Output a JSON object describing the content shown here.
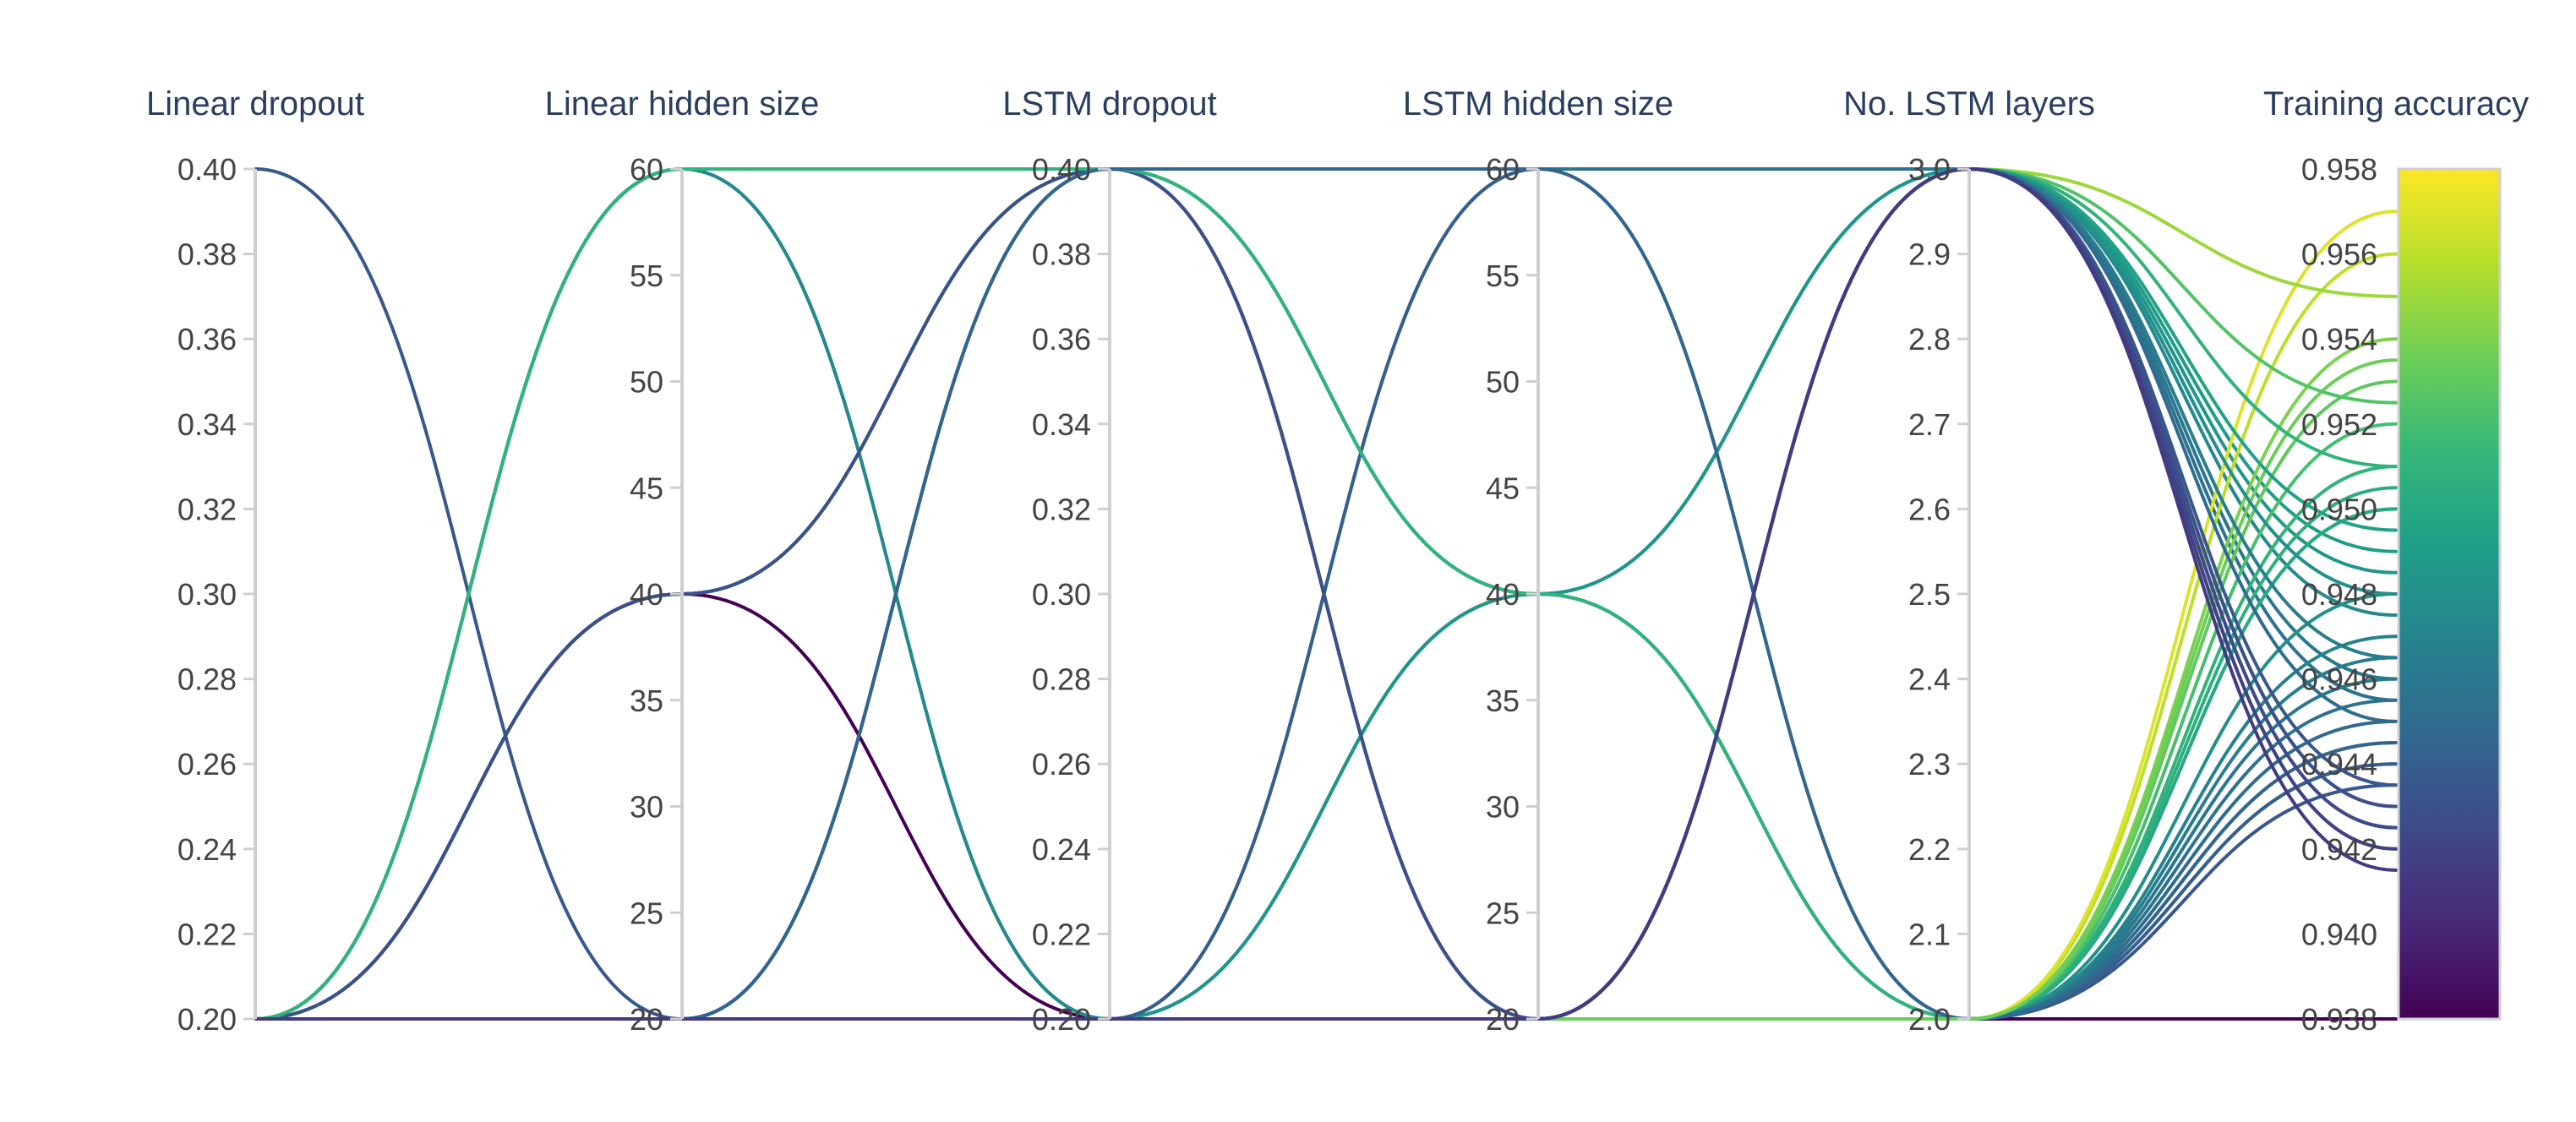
{
  "chart_data": {
    "type": "parallel-coordinates",
    "title": "",
    "colorscale": "viridis",
    "colorscale_stops": [
      "#440154",
      "#482878",
      "#3e4989",
      "#31688e",
      "#26828e",
      "#1f9e89",
      "#35b779",
      "#6ece58",
      "#b5de2b",
      "#fde725"
    ],
    "axes": [
      {
        "key": "linear_dropout",
        "label": "Linear dropout",
        "range": [
          0.2,
          0.4
        ],
        "ticks": [
          "0.20",
          "0.22",
          "0.24",
          "0.26",
          "0.28",
          "0.30",
          "0.32",
          "0.34",
          "0.36",
          "0.38",
          "0.40"
        ]
      },
      {
        "key": "linear_hidden",
        "label": "Linear hidden size",
        "range": [
          20,
          60
        ],
        "ticks": [
          "20",
          "25",
          "30",
          "35",
          "40",
          "45",
          "50",
          "55",
          "60"
        ]
      },
      {
        "key": "lstm_dropout",
        "label": "LSTM dropout",
        "range": [
          0.2,
          0.4
        ],
        "ticks": [
          "0.20",
          "0.22",
          "0.24",
          "0.26",
          "0.28",
          "0.30",
          "0.32",
          "0.34",
          "0.36",
          "0.38",
          "0.40"
        ]
      },
      {
        "key": "lstm_hidden",
        "label": "LSTM hidden size",
        "range": [
          20,
          60
        ],
        "ticks": [
          "20",
          "25",
          "30",
          "35",
          "40",
          "45",
          "50",
          "55",
          "60"
        ]
      },
      {
        "key": "lstm_layers",
        "label": "No. LSTM layers",
        "range": [
          2,
          3
        ],
        "ticks": [
          "2.0",
          "2.1",
          "2.2",
          "2.3",
          "2.4",
          "2.5",
          "2.6",
          "2.7",
          "2.8",
          "2.9",
          "3.0"
        ]
      },
      {
        "key": "training_accuracy",
        "label": "Training accuracy",
        "range": [
          0.938,
          0.958
        ],
        "ticks": [
          "0.938",
          "0.940",
          "0.942",
          "0.944",
          "0.946",
          "0.948",
          "0.950",
          "0.952",
          "0.954",
          "0.956",
          "0.958"
        ]
      }
    ],
    "runs": [
      [
        0.4,
        20,
        0.2,
        20,
        2,
        0.9435
      ],
      [
        0.2,
        60,
        0.2,
        20,
        2,
        0.9445
      ],
      [
        0.2,
        60,
        0.4,
        60,
        3,
        0.946
      ],
      [
        0.2,
        40,
        0.4,
        40,
        3,
        0.949
      ],
      [
        0.2,
        40,
        0.2,
        20,
        2,
        0.938
      ],
      [
        0.2,
        20,
        0.4,
        20,
        3,
        0.942
      ],
      [
        0.2,
        20,
        0.2,
        60,
        3,
        0.9455
      ],
      [
        0.2,
        40,
        0.4,
        40,
        2,
        0.9465
      ],
      [
        0.2,
        60,
        0.4,
        40,
        2,
        0.95
      ],
      [
        0.2,
        20,
        0.4,
        20,
        3,
        0.9425
      ],
      [
        0.2,
        60,
        0.2,
        40,
        3,
        0.9475
      ],
      [
        0.2,
        20,
        0.2,
        40,
        2,
        0.9455
      ],
      [
        0.2,
        20,
        0.2,
        40,
        3,
        0.9485
      ],
      [
        0.2,
        20,
        0.2,
        60,
        2,
        0.944
      ],
      [
        0.2,
        40,
        0.4,
        20,
        3,
        0.943
      ],
      [
        0.2,
        60,
        0.4,
        40,
        2,
        0.951
      ],
      [
        0.2,
        20,
        0.4,
        60,
        2,
        0.9445
      ],
      [
        0.2,
        20,
        0.2,
        20,
        2,
        0.944
      ],
      [
        0.2,
        20,
        0.2,
        20,
        2,
        0.947
      ],
      [
        0.2,
        20,
        0.2,
        20,
        2,
        0.95
      ],
      [
        0.2,
        20,
        0.2,
        20,
        2,
        0.952
      ],
      [
        0.2,
        20,
        0.2,
        20,
        2,
        0.954
      ],
      [
        0.2,
        20,
        0.2,
        20,
        2,
        0.956
      ],
      [
        0.2,
        20,
        0.2,
        20,
        2,
        0.957
      ],
      [
        0.2,
        20,
        0.2,
        20,
        2,
        0.953
      ],
      [
        0.2,
        20,
        0.2,
        20,
        2,
        0.9505
      ],
      [
        0.2,
        20,
        0.2,
        20,
        2,
        0.948
      ],
      [
        0.2,
        20,
        0.2,
        20,
        2,
        0.946
      ],
      [
        0.2,
        20,
        0.2,
        20,
        2,
        0.945
      ],
      [
        0.2,
        20,
        0.2,
        20,
        2,
        0.9535
      ],
      [
        0.2,
        20,
        0.2,
        20,
        3,
        0.955
      ],
      [
        0.2,
        20,
        0.2,
        20,
        3,
        0.9525
      ],
      [
        0.2,
        20,
        0.2,
        20,
        3,
        0.951
      ],
      [
        0.2,
        20,
        0.2,
        20,
        3,
        0.9495
      ],
      [
        0.2,
        20,
        0.2,
        20,
        3,
        0.948
      ],
      [
        0.2,
        20,
        0.2,
        20,
        3,
        0.9465
      ],
      [
        0.2,
        20,
        0.2,
        20,
        3,
        0.945
      ],
      [
        0.2,
        20,
        0.2,
        20,
        3,
        0.9435
      ],
      [
        0.2,
        20,
        0.2,
        20,
        3,
        0.943
      ],
      [
        0.2,
        20,
        0.2,
        20,
        3,
        0.9425
      ],
      [
        0.2,
        20,
        0.2,
        20,
        3,
        0.942
      ],
      [
        0.2,
        20,
        0.2,
        20,
        3,
        0.9415
      ]
    ]
  }
}
